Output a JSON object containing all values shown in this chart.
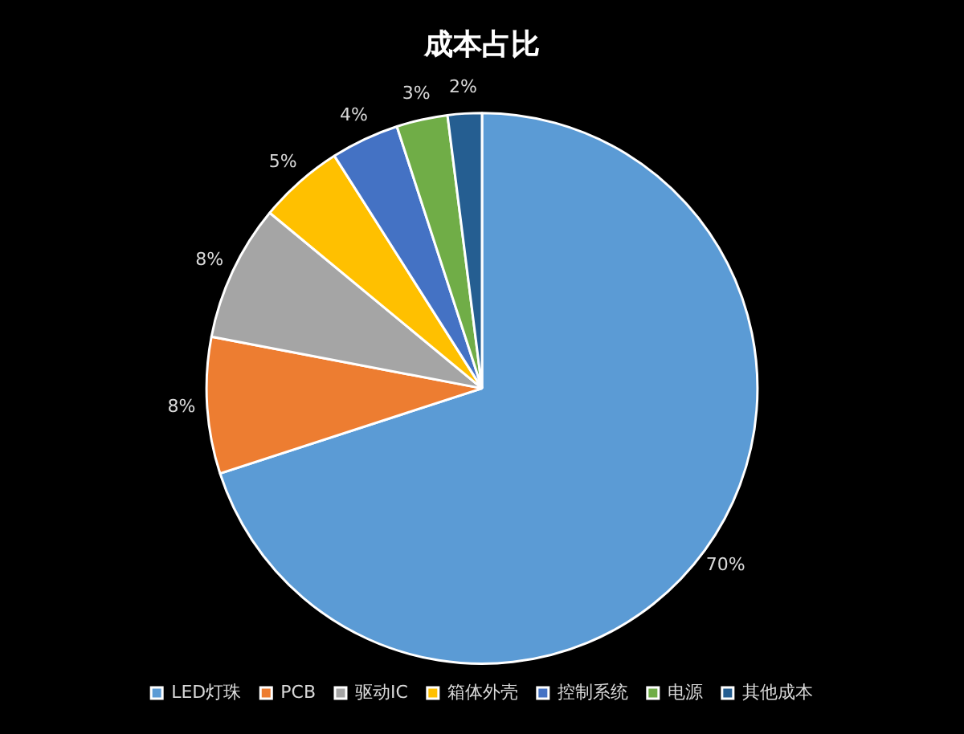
{
  "chart_data": {
    "type": "pie",
    "title": "成本占比",
    "categories": [
      "LED灯珠",
      "PCB",
      "驱动IC",
      "箱体外壳",
      "控制系统",
      "电源",
      "其他成本"
    ],
    "values": [
      70,
      8,
      8,
      5,
      4,
      3,
      2
    ],
    "colors": [
      "#5b9bd5",
      "#ed7d31",
      "#a5a5a5",
      "#ffc000",
      "#4472c4",
      "#70ad47",
      "#255e91"
    ],
    "value_labels": [
      "70%",
      "8%",
      "8%",
      "5%",
      "4%",
      "3%",
      "2%"
    ],
    "legend": "bottom"
  }
}
